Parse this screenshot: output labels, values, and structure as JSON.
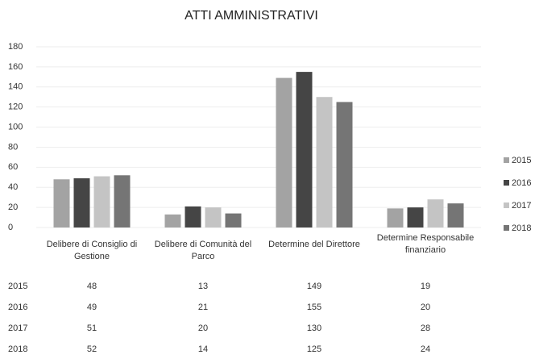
{
  "chart_data": {
    "type": "bar",
    "title": "ATTI AMMINISTRATIVI",
    "categories": [
      "Delibere di Consiglio di Gestione",
      "Delibere di Comunità del Parco",
      "Determine del Direttore",
      "Determine Responsabile finanziario"
    ],
    "series": [
      {
        "name": "2015",
        "color": "#a3a3a3",
        "values": [
          48,
          13,
          149,
          19
        ]
      },
      {
        "name": "2016",
        "color": "#454545",
        "values": [
          49,
          21,
          155,
          20
        ]
      },
      {
        "name": "2017",
        "color": "#c4c4c4",
        "values": [
          51,
          20,
          130,
          28
        ]
      },
      {
        "name": "2018",
        "color": "#757575",
        "values": [
          52,
          14,
          125,
          24
        ]
      }
    ],
    "ylim": [
      0,
      180
    ],
    "yticks": [
      0,
      20,
      40,
      60,
      80,
      100,
      120,
      140,
      160,
      180
    ],
    "grid": true,
    "legend": "right",
    "data_table": true
  }
}
